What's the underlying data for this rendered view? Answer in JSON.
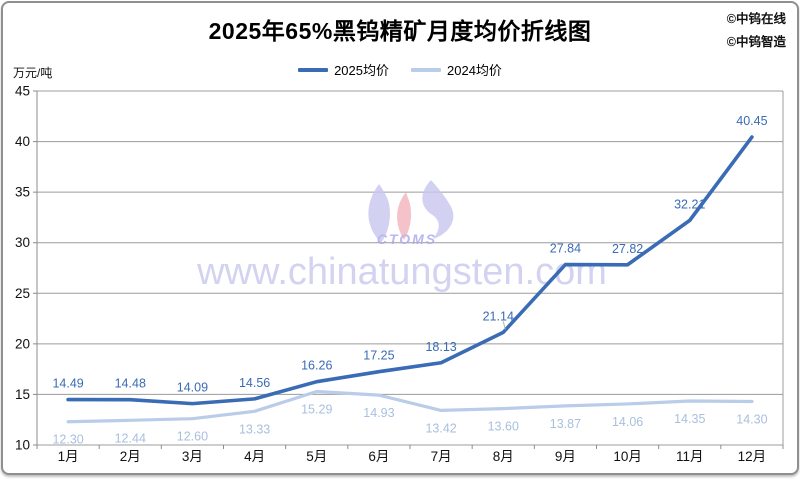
{
  "header": {
    "copyright": [
      "©中钨在线",
      "©中钨智造"
    ]
  },
  "watermark": {
    "url_text": "www.chinatungsten.com",
    "logo_text": "CTOMS"
  },
  "chart_data": {
    "type": "line",
    "title": "2025年65%黑钨精矿月度均价折线图",
    "unit_label": "万元/吨",
    "categories": [
      "1月",
      "2月",
      "3月",
      "4月",
      "5月",
      "6月",
      "7月",
      "8月",
      "9月",
      "10月",
      "11月",
      "12月"
    ],
    "series": [
      {
        "name": "2025均价",
        "color": "#3a6bb5",
        "label_color": "#3a6bb5",
        "label_position": "above",
        "values": [
          14.49,
          14.48,
          14.09,
          14.56,
          16.26,
          17.25,
          18.13,
          21.14,
          27.84,
          27.82,
          32.21,
          40.45
        ]
      },
      {
        "name": "2024均价",
        "color": "#b9cce8",
        "label_color": "#a9bfde",
        "label_position": "below",
        "values": [
          12.3,
          12.44,
          12.6,
          13.33,
          15.29,
          14.93,
          13.42,
          13.6,
          13.87,
          14.06,
          14.35,
          14.3
        ]
      }
    ],
    "ylim": [
      10,
      45
    ],
    "ytick_step": 5,
    "grid": true,
    "legend_position": "top"
  }
}
